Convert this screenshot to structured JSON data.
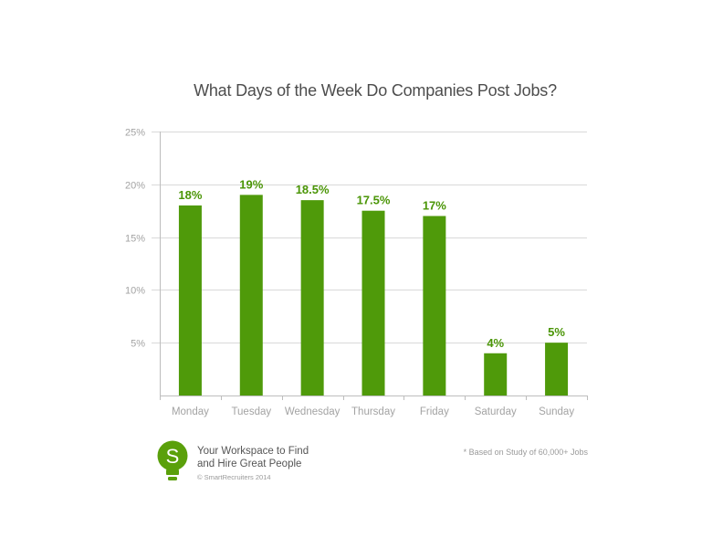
{
  "chart_data": {
    "type": "bar",
    "title": "What Days of the Week Do Companies Post Jobs?",
    "categories": [
      "Monday",
      "Tuesday",
      "Wednesday",
      "Thursday",
      "Friday",
      "Saturday",
      "Sunday"
    ],
    "values": [
      18,
      19,
      18.5,
      17.5,
      17,
      4,
      5
    ],
    "data_labels": [
      "18%",
      "19%",
      "18.5%",
      "17.5%",
      "17%",
      "4%",
      "5%"
    ],
    "ylim": [
      0,
      25
    ],
    "y_ticks": [
      5,
      10,
      15,
      20,
      25
    ],
    "y_tick_labels": [
      "5%",
      "10%",
      "15%",
      "20%",
      "25%"
    ],
    "xlabel": "",
    "ylabel": "",
    "grid": true,
    "bar_color": "#4f9a0a",
    "label_color": "#4a9506"
  },
  "branding": {
    "logo_letter": "S",
    "logo_color": "#5aa00b",
    "tagline_line1": "Your Workspace to Find",
    "tagline_line2": "and Hire Great People",
    "copyright": "© SmartRecruiters 2014"
  },
  "footnote": "* Based on Study of 60,000+ Jobs"
}
